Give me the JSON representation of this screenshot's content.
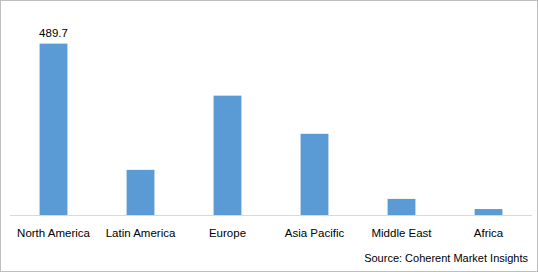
{
  "chart_data": {
    "type": "bar",
    "categories": [
      "North America",
      "Latin America",
      "Europe",
      "Asia Pacific",
      "Middle East",
      "Africa"
    ],
    "values": [
      489.7,
      129,
      341,
      232,
      46,
      17
    ],
    "value_labels": [
      "489.7",
      null,
      null,
      null,
      null,
      null
    ],
    "data_labels": true,
    "color": "#5b9bd5",
    "ylim": [
      0,
      500
    ],
    "tick_labels": "x",
    "grid": false,
    "source": "Source: Coherent Market Insights"
  }
}
